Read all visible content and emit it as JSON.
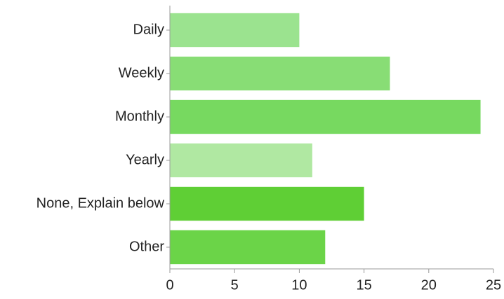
{
  "chart_data": {
    "type": "bar",
    "orientation": "horizontal",
    "categories": [
      "Daily",
      "Weekly",
      "Monthly",
      "Yearly",
      "None, Explain below",
      "Other"
    ],
    "values": [
      10,
      17,
      24,
      11,
      15,
      12
    ],
    "colors": [
      "#9be38f",
      "#88dd75",
      "#77d960",
      "#b0e8a2",
      "#5fcf35",
      "#6bd448"
    ],
    "xlim": [
      0,
      25
    ],
    "xticks": [
      0,
      5,
      10,
      15,
      20,
      25
    ],
    "grid": false
  }
}
